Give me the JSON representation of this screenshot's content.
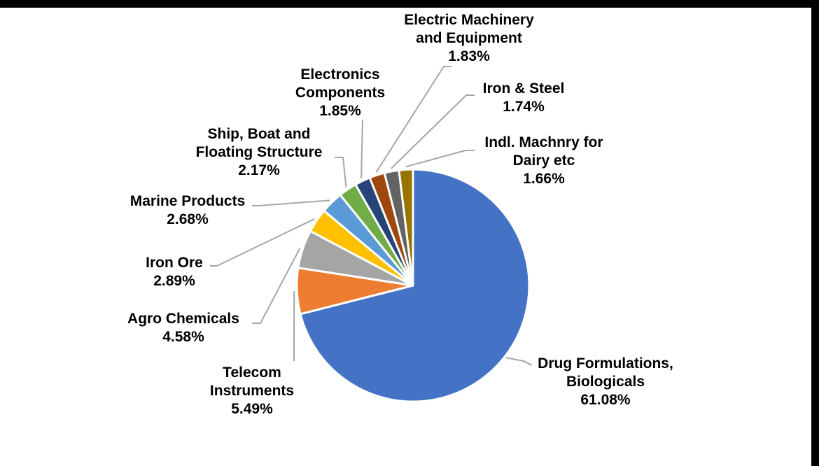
{
  "chart_data": {
    "type": "pie",
    "title": "",
    "start_angle_deg": 0,
    "direction": "clockwise",
    "slices": [
      {
        "label": [
          "Drug Formulations,",
          "Biologicals"
        ],
        "percent_text": "61.08%",
        "value": 61.08,
        "color": "#4472C4"
      },
      {
        "label": [
          "Telecom",
          "Instruments"
        ],
        "percent_text": "5.49%",
        "value": 5.49,
        "color": "#ED7D31"
      },
      {
        "label": [
          "Agro Chemicals"
        ],
        "percent_text": "4.58%",
        "value": 4.58,
        "color": "#A5A5A5"
      },
      {
        "label": [
          "Iron Ore"
        ],
        "percent_text": "2.89%",
        "value": 2.89,
        "color": "#FFC000"
      },
      {
        "label": [
          "Marine Products"
        ],
        "percent_text": "2.68%",
        "value": 2.68,
        "color": "#5B9BD5"
      },
      {
        "label": [
          "Ship, Boat and",
          "Floating Structure"
        ],
        "percent_text": "2.17%",
        "value": 2.17,
        "color": "#70AD47"
      },
      {
        "label": [
          "Electronics",
          "Components"
        ],
        "percent_text": "1.85%",
        "value": 1.85,
        "color": "#264478"
      },
      {
        "label": [
          "Electric Machinery",
          "and Equipment"
        ],
        "percent_text": "1.83%",
        "value": 1.83,
        "color": "#9E480E"
      },
      {
        "label": [
          "Iron & Steel"
        ],
        "percent_text": "1.74%",
        "value": 1.74,
        "color": "#636363"
      },
      {
        "label": [
          "Indl. Machnry for",
          "Dairy etc"
        ],
        "percent_text": "1.66%",
        "value": 1.66,
        "color": "#997300"
      }
    ],
    "leader_line_color": "#A6A6A6"
  }
}
